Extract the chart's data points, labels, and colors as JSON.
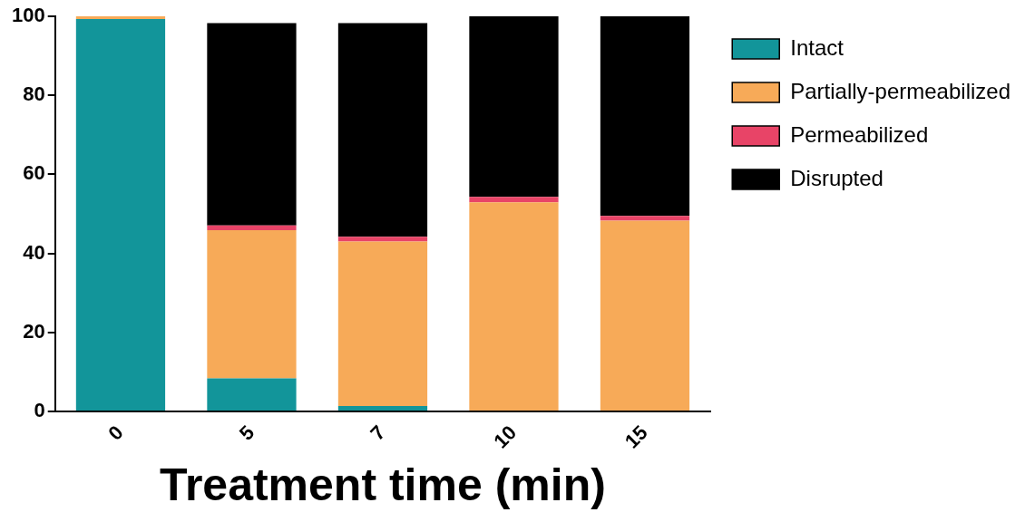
{
  "chart_data": {
    "type": "bar",
    "stacked": true,
    "xlabel": "Treatment time (min)",
    "categories": [
      "0",
      "5",
      "7",
      "10",
      "15"
    ],
    "series": [
      {
        "name": "Intact",
        "color": "#12959a",
        "values": [
          99.3,
          8.4,
          1.4,
          0,
          0
        ]
      },
      {
        "name": "Partially-permeabilized",
        "color": "#f7aa58",
        "values": [
          0.7,
          37.5,
          41.6,
          52.9,
          48.3
        ]
      },
      {
        "name": "Permeabilized",
        "color": "#e84467",
        "values": [
          0,
          1.2,
          1.2,
          1.4,
          1.2
        ]
      },
      {
        "name": "Disrupted",
        "color": "#000000",
        "values": [
          0,
          51.2,
          54.1,
          45.7,
          50.5
        ]
      }
    ],
    "ylim": [
      0,
      100
    ],
    "yticks": [
      0,
      20,
      40,
      60,
      80,
      100
    ],
    "grid": false,
    "legend": "top right"
  }
}
